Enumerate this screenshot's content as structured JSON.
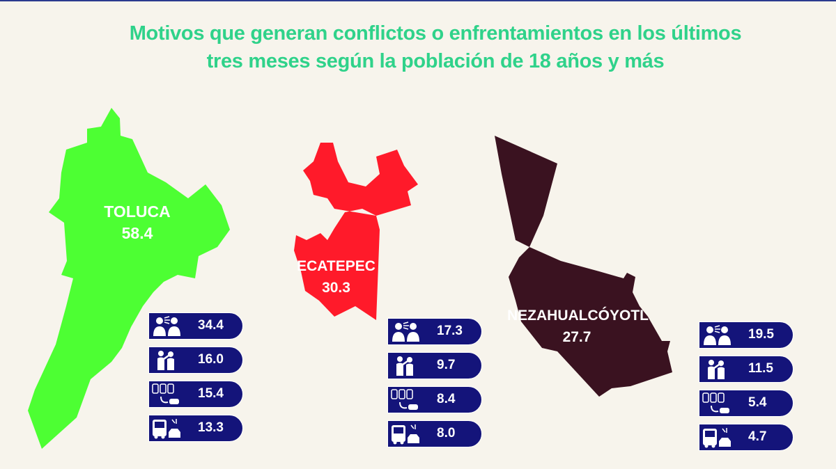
{
  "title": {
    "line1": "Motivos que generan conflictos o enfrentamientos en los últimos",
    "line2": "tres meses según la población de 18 años y más"
  },
  "colors": {
    "title": "#2fd28a",
    "toluca": "#4dff33",
    "ecatepec": "#ff1a2a",
    "nezahualcoyotl": "#3a1220",
    "card_bg": "#14147a",
    "background": "#f7f4ec"
  },
  "municipalities": [
    {
      "id": "toluca",
      "name": "TOLUCA",
      "value": "58.4",
      "stats": [
        {
          "icon": "arguing-people-icon",
          "value": "34.4"
        },
        {
          "icon": "neighbors-dispute-icon",
          "value": "16.0"
        },
        {
          "icon": "parking-conflict-icon",
          "value": "15.4"
        },
        {
          "icon": "traffic-conflict-icon",
          "value": "13.3"
        }
      ]
    },
    {
      "id": "ecatepec",
      "name": "ECATEPEC",
      "value": "30.3",
      "stats": [
        {
          "icon": "arguing-people-icon",
          "value": "17.3"
        },
        {
          "icon": "neighbors-dispute-icon",
          "value": "9.7"
        },
        {
          "icon": "parking-conflict-icon",
          "value": "8.4"
        },
        {
          "icon": "traffic-conflict-icon",
          "value": "8.0"
        }
      ]
    },
    {
      "id": "nezahualcoyotl",
      "name": "NEZAHUALCÓYOTL",
      "value": "27.7",
      "stats": [
        {
          "icon": "arguing-people-icon",
          "value": "19.5"
        },
        {
          "icon": "neighbors-dispute-icon",
          "value": "11.5"
        },
        {
          "icon": "parking-conflict-icon",
          "value": "5.4"
        },
        {
          "icon": "traffic-conflict-icon",
          "value": "4.7"
        }
      ]
    }
  ]
}
